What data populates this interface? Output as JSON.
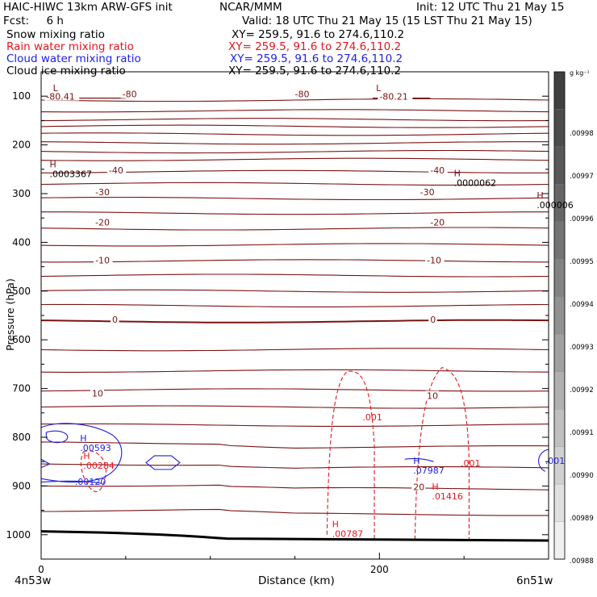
{
  "header": {
    "line1_left": "HAIC-HIWC 13km ARW-GFS init",
    "line1_mid": "NCAR/MMM",
    "line1_right": "Init: 12 UTC Thu 21 May 15",
    "line2_left": "Fcst:     6 h",
    "line2_right": "Valid: 18 UTC Thu 21 May 15 (15 LST Thu 21 May 15)",
    "fields": [
      {
        "name": "Snow mixing ratio",
        "xy": "XY= 259.5, 91.6 to 274.6,110.2",
        "color": "#000000"
      },
      {
        "name": "Rain water mixing ratio",
        "xy": "XY= 259.5, 91.6 to 274.6,110.2",
        "color": "#e8141e"
      },
      {
        "name": "Cloud water mixing ratio",
        "xy": "XY= 259.5, 91.6 to 274.6,110.2",
        "color": "#1e1ee6"
      },
      {
        "name": "Cloud ice mixing ratio",
        "xy": "XY= 259.5, 91.6 to 274.6,110.2",
        "color": "#000000"
      }
    ]
  },
  "chart_data": {
    "type": "cross-section contour",
    "ylabel": "Pressure (hPa)",
    "xlabel": "Distance (km)",
    "x_ticks": [
      "0",
      "200"
    ],
    "y_ticks": [
      "100",
      "200",
      "300",
      "400",
      "500",
      "600",
      "700",
      "800",
      "900",
      "1000"
    ],
    "x_range": [
      0,
      300
    ],
    "y_range_hpa": [
      50,
      1050
    ],
    "y_scale": "linear",
    "endpoint_left": "4n53w",
    "endpoint_right": "6n51w",
    "colorbar": {
      "unit": "g kg⁻¹",
      "labels": [
        ".00998",
        ".00997",
        ".00996",
        ".00995",
        ".00994",
        ".00993",
        ".00992",
        ".00991",
        ".00990",
        ".00989",
        ".00988"
      ],
      "colors": [
        "#404040",
        "#4c4c4c",
        "#585858",
        "#666666",
        "#747474",
        "#828282",
        "#919191",
        "#a0a0a0",
        "#b0b0b0",
        "#c0c0c0",
        "#d0d0d0",
        "#e0e0e0",
        "#f0f0f0"
      ]
    },
    "temperature_contours": {
      "color": "#7a1212",
      "levels_pressure_hpa": [
        108,
        130,
        148,
        162,
        178,
        196,
        214,
        230,
        255,
        280,
        310,
        340,
        372,
        405,
        438,
        468,
        500,
        530,
        562,
        620,
        664,
        703,
        738,
        775,
        812,
        855,
        898,
        950
      ],
      "labels": [
        {
          "text": "-80.41",
          "x_km": 3,
          "p": 104
        },
        {
          "text": "-80",
          "x_km": 48,
          "p": 99
        },
        {
          "text": "-80",
          "x_km": 150,
          "p": 99
        },
        {
          "text": "-80.21",
          "x_km": 200,
          "p": 104
        },
        {
          "text": "-40",
          "x_km": 40,
          "p": 255
        },
        {
          "text": "-40",
          "x_km": 230,
          "p": 255
        },
        {
          "text": "-30",
          "x_km": 32,
          "p": 300
        },
        {
          "text": "-30",
          "x_km": 224,
          "p": 300
        },
        {
          "text": "-20",
          "x_km": 32,
          "p": 362
        },
        {
          "text": "-20",
          "x_km": 230,
          "p": 362
        },
        {
          "text": "-10",
          "x_km": 32,
          "p": 440
        },
        {
          "text": "-10",
          "x_km": 228,
          "p": 440
        },
        {
          "text": "0",
          "x_km": 42,
          "p": 562
        },
        {
          "text": "0",
          "x_km": 230,
          "p": 562
        },
        {
          "text": "10",
          "x_km": 30,
          "p": 713
        },
        {
          "text": "10",
          "x_km": 228,
          "p": 718
        },
        {
          "text": "20",
          "x_km": 220,
          "p": 905
        }
      ],
      "extrema": [
        {
          "type": "L",
          "x_km": 7,
          "p": 90
        },
        {
          "type": "L",
          "x_km": 198,
          "p": 90
        },
        {
          "type": "H",
          "x_km": 5,
          "p": 246,
          "value": ".0003367"
        },
        {
          "type": "H",
          "x_km": 244,
          "p": 264,
          "value": ".0000062"
        },
        {
          "type": "H",
          "x_km": 293,
          "p": 310,
          "value": ".000006"
        }
      ]
    },
    "rain_water": {
      "color": "#e8141e",
      "contour_labels": [
        {
          "text": ".001",
          "x_km": 190,
          "p": 765
        },
        {
          "text": ".001",
          "x_km": 248,
          "p": 860
        }
      ],
      "extrema": [
        {
          "type": "H",
          "x_km": 25,
          "p": 845,
          "value": ".00284"
        },
        {
          "type": "H",
          "x_km": 231,
          "p": 908,
          "value": ".01416"
        },
        {
          "type": "H",
          "x_km": 172,
          "p": 985,
          "value": ".00787"
        }
      ]
    },
    "cloud_water": {
      "color": "#1e1ee6",
      "contour_labels": [
        {
          "text": ".00120",
          "x_km": 20,
          "p": 898
        },
        {
          "text": ".001",
          "x_km": 298,
          "p": 855
        }
      ],
      "extrema": [
        {
          "type": "H",
          "x_km": 23,
          "p": 808,
          "value": ".00593"
        },
        {
          "type": "H",
          "x_km": 220,
          "p": 855,
          "value": ".07987"
        }
      ]
    },
    "surface_color": "#000000"
  }
}
